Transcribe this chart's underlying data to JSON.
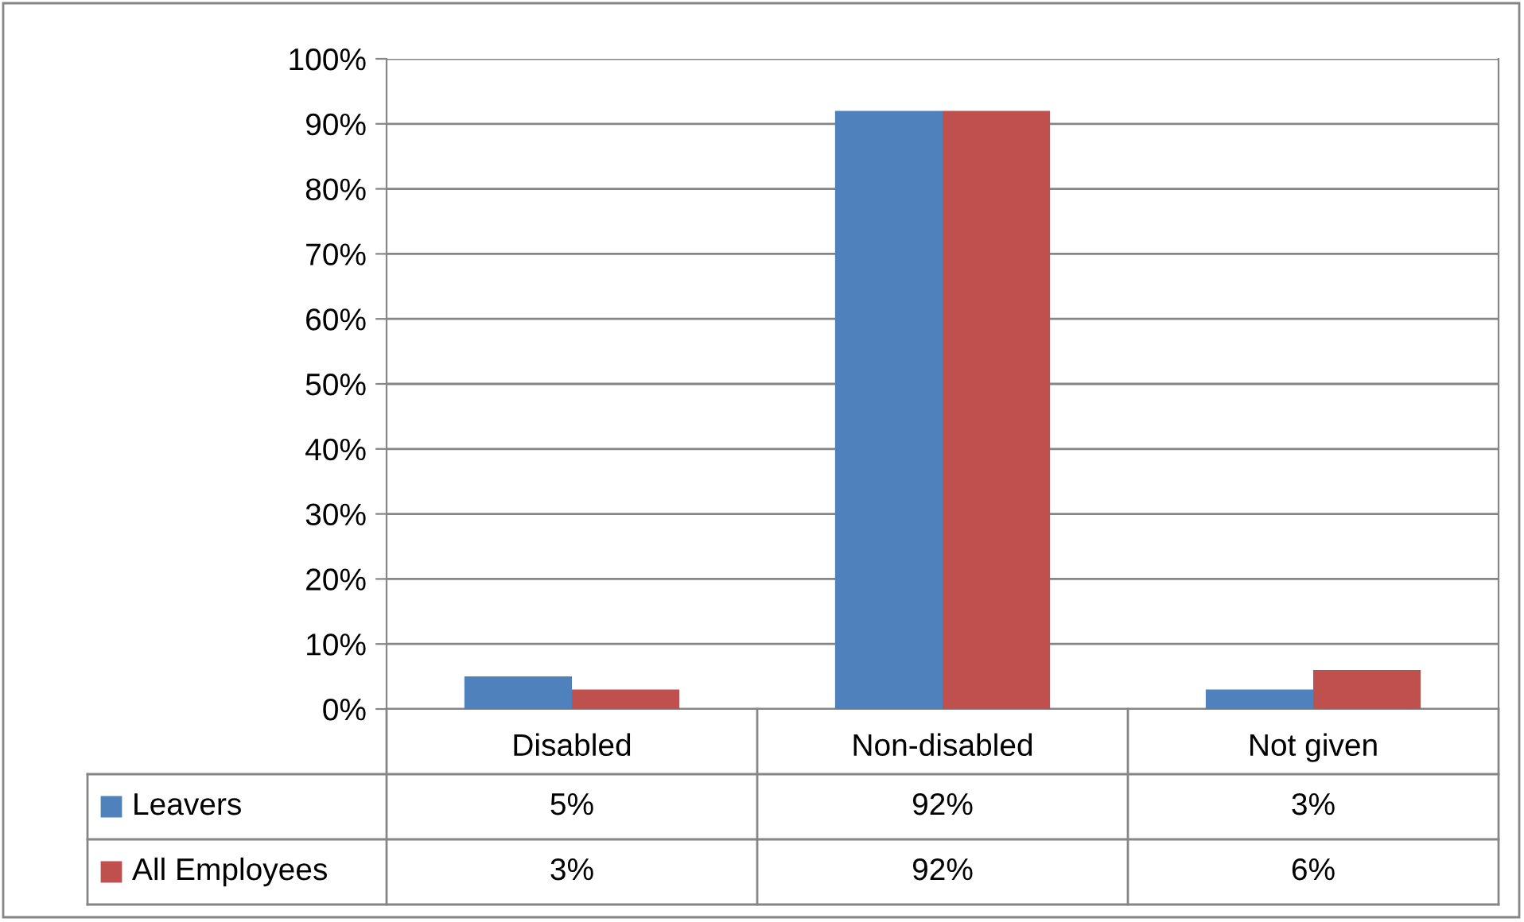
{
  "chart_data": {
    "type": "bar",
    "categories": [
      "Disabled",
      "Non-disabled",
      "Not given"
    ],
    "series": [
      {
        "name": "Leavers",
        "color": "#4f81bd",
        "values": [
          5,
          92,
          3
        ]
      },
      {
        "name": "All Employees",
        "color": "#c0504d",
        "values": [
          3,
          92,
          6
        ]
      }
    ],
    "ylim": [
      0,
      100
    ],
    "yticks": [
      {
        "value": 0,
        "label": "0%"
      },
      {
        "value": 10,
        "label": "10%"
      },
      {
        "value": 20,
        "label": "20%"
      },
      {
        "value": 30,
        "label": "30%"
      },
      {
        "value": 40,
        "label": "40%"
      },
      {
        "value": 50,
        "label": "50%"
      },
      {
        "value": 60,
        "label": "60%"
      },
      {
        "value": 70,
        "label": "70%"
      },
      {
        "value": 80,
        "label": "80%"
      },
      {
        "value": 90,
        "label": "90%"
      },
      {
        "value": 100,
        "label": "100%"
      }
    ],
    "grid": "y",
    "legend": "bottom",
    "value_labels": [
      [
        "5%",
        "92%",
        "3%"
      ],
      [
        "3%",
        "92%",
        "6%"
      ]
    ]
  }
}
